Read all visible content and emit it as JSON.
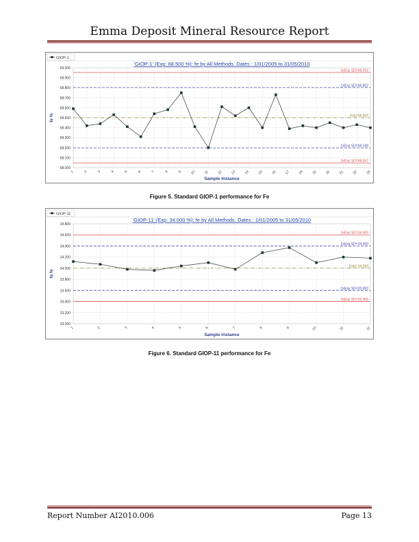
{
  "header": {
    "title": "Emma Deposit Mineral Resource Report"
  },
  "footer": {
    "report_number": "Report Number AI2010.006",
    "page": "Page 13"
  },
  "figures": [
    {
      "caption": "Figure 5. Standard GIOP-1 performance for Fe"
    },
    {
      "caption": "Figure 6. Standard GIOP-11 performance for Fe"
    }
  ],
  "colors": {
    "accent_rule": "#7b1f1f",
    "title_blue": "#1f3fa5",
    "sd3_line": "#e05050",
    "sd2_line": "#5050b0",
    "exp_line": "#8a8a30",
    "series": "#333333"
  },
  "chart_data": [
    {
      "type": "line",
      "legend": "GIOP-1",
      "title": "'GIOP-1' (Exp: 68.500 %): fe by All Methods. Dates : 1/01/2005 to 31/05/2010",
      "xlabel": "Sample Instance",
      "ylabel": "fe %",
      "ylim": [
        68.0,
        69.0
      ],
      "yticks": [
        "68.000",
        "68.100",
        "68.200",
        "68.300",
        "68.400",
        "68.500",
        "68.600",
        "68.700",
        "68.800",
        "68.900",
        "69.000"
      ],
      "x": [
        "1",
        "2",
        "3",
        "4",
        "5",
        "6",
        "7",
        "8",
        "9",
        "10",
        "11",
        "12",
        "13",
        "14",
        "15",
        "16",
        "17",
        "18",
        "19",
        "20",
        "21",
        "22",
        "23"
      ],
      "values": [
        68.59,
        68.42,
        68.44,
        68.53,
        68.41,
        68.31,
        68.54,
        68.58,
        68.75,
        68.41,
        68.2,
        68.61,
        68.52,
        68.6,
        68.4,
        68.73,
        68.39,
        68.42,
        68.4,
        68.45,
        68.4,
        68.43,
        68.4
      ],
      "reference_lines": [
        {
          "label": "3xExp SD=68.953",
          "value": 68.953,
          "kind": "sd3"
        },
        {
          "label": "2xExp SD=68.802",
          "value": 68.802,
          "kind": "sd2"
        },
        {
          "label": "Exp=68.500",
          "value": 68.5,
          "kind": "exp"
        },
        {
          "label": "2xExp SD=68.198",
          "value": 68.198,
          "kind": "sd2"
        },
        {
          "label": "3xExp SD=68.047",
          "value": 68.047,
          "kind": "sd3"
        }
      ]
    },
    {
      "type": "line",
      "legend": "GIOP-11",
      "title": "'GIOP-11' (Exp: 34.000 %): fe by All Methods. Dates : 1/01/2005 to 31/05/2010",
      "xlabel": "Sample Instance",
      "ylabel": "fe %",
      "ylim": [
        33.0,
        34.8
      ],
      "yticks": [
        "33.000",
        "33.200",
        "33.400",
        "33.600",
        "33.800",
        "34.000",
        "34.200",
        "34.400",
        "34.600",
        "34.800"
      ],
      "x": [
        "1",
        "2",
        "3",
        "4",
        "5",
        "6",
        "7",
        "8",
        "9",
        "10",
        "11",
        "12"
      ],
      "values": [
        34.12,
        34.07,
        33.98,
        33.96,
        34.04,
        34.1,
        33.98,
        34.28,
        34.37,
        34.1,
        34.2,
        34.18
      ],
      "reference_lines": [
        {
          "label": "3xExp SD=34.600",
          "value": 34.6,
          "kind": "sd3"
        },
        {
          "label": "2xExp SD=34.400",
          "value": 34.4,
          "kind": "sd2"
        },
        {
          "label": "Exp= 34.000",
          "value": 34.0,
          "kind": "exp"
        },
        {
          "label": "2xExp SD=33.600",
          "value": 33.6,
          "kind": "sd2"
        },
        {
          "label": "3xExp SD=33.400",
          "value": 33.4,
          "kind": "sd3"
        }
      ]
    }
  ]
}
